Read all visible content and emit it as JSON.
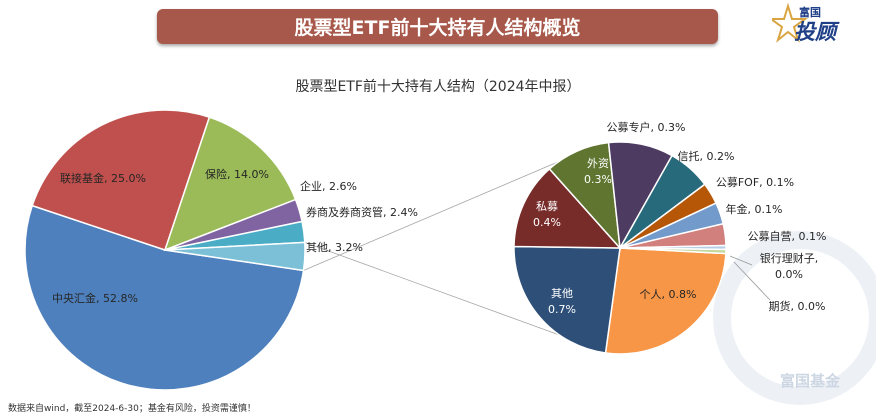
{
  "header": {
    "title": "股票型ETF前十大持有人结构概览",
    "logo_small": "富国",
    "logo_main": "投顾"
  },
  "footer": {
    "note": "数据来自wind，截至2024-6-30；基金有风险，投资需谨慎！",
    "watermark": "富国基金"
  },
  "colors": {
    "banner": "#a7584a",
    "logo": "#1f3f86"
  },
  "chart_data": [
    {
      "type": "pie",
      "title": "股票型ETF前十大持有人结构（2024年中报）",
      "slices": [
        {
          "label": "中央汇金",
          "value": 52.8,
          "text": "中央汇金, 52.8%",
          "color": "#4e80bd"
        },
        {
          "label": "联接基金",
          "value": 25.0,
          "text": "联接基金, 25.0%",
          "color": "#c0504d"
        },
        {
          "label": "保险",
          "value": 14.0,
          "text": "保险, 14.0%",
          "color": "#9bbb59"
        },
        {
          "label": "企业",
          "value": 2.6,
          "text": "企业, 2.6%",
          "color": "#8064a2"
        },
        {
          "label": "券商及券商资管",
          "value": 2.4,
          "text": "券商及券商资管, 2.4%",
          "color": "#4bacc6"
        },
        {
          "label": "其他",
          "value": 3.2,
          "text": "其他, 3.2%",
          "color": "#7cc0d8"
        }
      ]
    },
    {
      "type": "pie",
      "title": "",
      "slices": [
        {
          "label": "个人",
          "value": 0.8,
          "text": "个人, 0.8%",
          "color": "#f79646"
        },
        {
          "label": "其他",
          "value": 0.7,
          "text": "其他\n0.7%",
          "color": "#2e5078"
        },
        {
          "label": "私募",
          "value": 0.4,
          "text": "私募\n0.4%",
          "color": "#772c2a"
        },
        {
          "label": "外资",
          "value": 0.3,
          "text": "外资\n0.3%",
          "color": "#5f7530"
        },
        {
          "label": "公募专户",
          "value": 0.3,
          "text": "公募专户, 0.3%",
          "color": "#4d3b62"
        },
        {
          "label": "信托",
          "value": 0.2,
          "text": "信托, 0.2%",
          "color": "#276a7c"
        },
        {
          "label": "公募FOF",
          "value": 0.1,
          "text": "公募FOF, 0.1%",
          "color": "#b65708"
        },
        {
          "label": "年金",
          "value": 0.1,
          "text": "年金, 0.1%",
          "color": "#729acb"
        },
        {
          "label": "公募自营",
          "value": 0.1,
          "text": "公募自营, 0.1%",
          "color": "#d1807e"
        },
        {
          "label": "银行理财子",
          "value": 0.0,
          "text": "银行理财子,\n0.0%",
          "color": "#b7cde6"
        },
        {
          "label": "期货",
          "value": 0.0,
          "text": "期货, 0.0%",
          "color": "#c3d69b"
        }
      ]
    }
  ]
}
